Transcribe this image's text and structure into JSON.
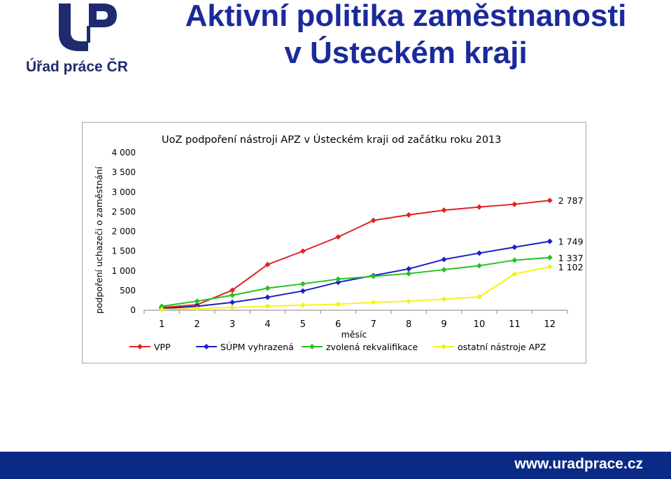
{
  "header": {
    "logo_text": "Úřad práce ČR",
    "title_line1": "Aktivní politika zaměstnanosti",
    "title_line2": "v Ústeckém kraji"
  },
  "footer": {
    "url": "www.uradprace.cz"
  },
  "colors": {
    "brand": "#1f2b6e",
    "title": "#1a2a9a",
    "footer": "#0b2a86"
  },
  "chart_data": {
    "type": "line",
    "title": "UoZ podpoření nástroji APZ v Ústeckém kraji od začátku roku 2013",
    "xlabel": "měsíc",
    "ylabel": "podpoření uchazeči o zaměstnání",
    "categories": [
      "1",
      "2",
      "3",
      "4",
      "5",
      "6",
      "7",
      "8",
      "9",
      "10",
      "11",
      "12"
    ],
    "ylim": [
      0,
      4000
    ],
    "yticks": [
      0,
      500,
      1000,
      1500,
      2000,
      2500,
      3000,
      3500,
      4000
    ],
    "ytick_labels": [
      "0",
      "500",
      "1 000",
      "1 500",
      "2 000",
      "2 500",
      "3 000",
      "3 500",
      "4 000"
    ],
    "grid": false,
    "legend_position": "bottom",
    "series": [
      {
        "name": "VPP",
        "color": "#e32222",
        "values": [
          70,
          140,
          510,
          1160,
          1500,
          1860,
          2280,
          2420,
          2540,
          2620,
          2690,
          2787
        ],
        "end_label": "2 787"
      },
      {
        "name": "SÚPM vyhrazená",
        "color": "#1c1fc7",
        "values": [
          40,
          100,
          200,
          330,
          490,
          710,
          880,
          1050,
          1290,
          1450,
          1600,
          1749
        ],
        "end_label": "1 749"
      },
      {
        "name": "zvolená rekvalifikace",
        "color": "#22c222",
        "values": [
          100,
          230,
          380,
          560,
          670,
          790,
          860,
          930,
          1030,
          1130,
          1270,
          1337
        ],
        "end_label": "1 337"
      },
      {
        "name": "ostatní nástroje APZ",
        "color": "#f4f21a",
        "values": [
          20,
          40,
          70,
          100,
          130,
          150,
          200,
          230,
          280,
          340,
          920,
          1102
        ],
        "end_label": "1 102"
      }
    ]
  }
}
